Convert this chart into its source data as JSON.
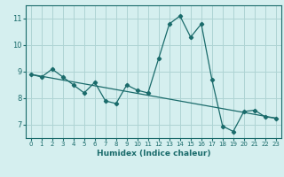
{
  "xlabel": "Humidex (Indice chaleur)",
  "bg_color": "#d5efef",
  "grid_color": "#aed4d4",
  "line_color": "#1a6b6b",
  "xlim": [
    -0.5,
    23.5
  ],
  "ylim": [
    6.5,
    11.5
  ],
  "yticks": [
    7,
    8,
    9,
    10,
    11
  ],
  "xticks": [
    0,
    1,
    2,
    3,
    4,
    5,
    6,
    7,
    8,
    9,
    10,
    11,
    12,
    13,
    14,
    15,
    16,
    17,
    18,
    19,
    20,
    21,
    22,
    23
  ],
  "series1_x": [
    0,
    1,
    2,
    3,
    4,
    5,
    6,
    7,
    8,
    9,
    10,
    11,
    12,
    13,
    14,
    15,
    16,
    17,
    18,
    19,
    20,
    21,
    22,
    23
  ],
  "series1_y": [
    8.9,
    8.8,
    9.1,
    8.8,
    8.5,
    8.2,
    8.6,
    7.9,
    7.8,
    8.5,
    8.3,
    8.2,
    9.5,
    10.8,
    11.1,
    10.3,
    10.8,
    8.7,
    6.95,
    6.75,
    7.5,
    7.55,
    7.3,
    7.25
  ],
  "series2_x": [
    0,
    23
  ],
  "series2_y": [
    8.9,
    7.25
  ]
}
